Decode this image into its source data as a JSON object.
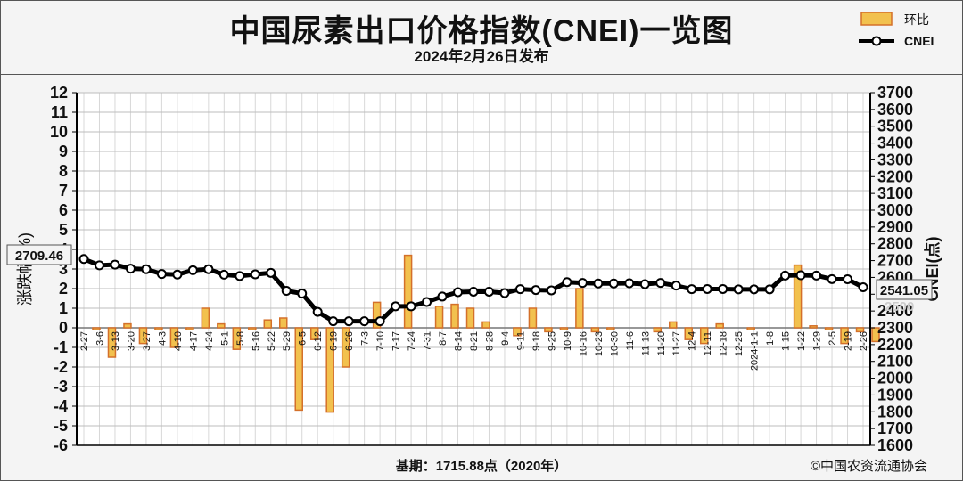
{
  "header": {
    "title": "中国尿素出口价格指数(CNEI)一览图",
    "subtitle": "2024年2月26日发布"
  },
  "legend": {
    "bar_label": "环比",
    "line_label": "CNEI"
  },
  "footer": {
    "base": "基期：1715.88点（2020年）",
    "credit": "©中国农资流通协会"
  },
  "colors": {
    "bar_fill": "#f2c14e",
    "bar_stroke": "#d4702a",
    "line": "#000000",
    "grid": "#bdbdbd",
    "plot_bg": "#ffffff"
  },
  "chart_data": {
    "type": "bar+line",
    "x": [
      "2-27",
      "3-6",
      "3-13",
      "3-20",
      "3-27",
      "4-3",
      "4-10",
      "4-17",
      "4-24",
      "5-1",
      "5-8",
      "5-16",
      "5-22",
      "5-29",
      "6-5",
      "6-12",
      "6-19",
      "6-26",
      "7-3",
      "7-10",
      "7-17",
      "7-24",
      "7-31",
      "8-7",
      "8-14",
      "8-21",
      "8-28",
      "9-4",
      "9-11",
      "9-18",
      "9-25",
      "10-9",
      "10-16",
      "10-23",
      "10-30",
      "11-6",
      "11-13",
      "11-20",
      "11-27",
      "12-4",
      "12-11",
      "12-18",
      "12-25",
      "2024-1-1",
      "1-8",
      "1-15",
      "1-22",
      "1-29",
      "2-5",
      "2-19",
      "2-26"
    ],
    "series": [
      {
        "name": "环比",
        "type": "bar",
        "axis": "left",
        "values": [
          -0.1,
          -1.5,
          0.2,
          -0.8,
          -0.1,
          -1.0,
          -0.1,
          1.0,
          0.2,
          -1.1,
          -0.1,
          0.4,
          0.5,
          -4.2,
          -0.6,
          -4.3,
          -2.0,
          0.0,
          1.3,
          0.0,
          3.7,
          0.0,
          1.1,
          1.2,
          1.0,
          0.3,
          0.0,
          -0.4,
          1.0,
          -0.2,
          -0.1,
          2.0,
          -0.2,
          -0.1,
          0.0,
          0.0,
          -0.2,
          0.3,
          -0.6,
          -0.8,
          0.2,
          0.0,
          -0.1,
          0.0,
          0.0,
          3.2,
          0.1,
          -0.1,
          -0.8,
          -0.2,
          -0.7
        ]
      },
      {
        "name": "CNEI",
        "type": "line",
        "axis": "right",
        "values": [
          2709.46,
          2672,
          2676,
          2652,
          2649,
          2620,
          2617,
          2643,
          2649,
          2616,
          2608,
          2618,
          2627,
          2520,
          2504,
          2395,
          2339,
          2339,
          2339,
          2339,
          2428,
          2428,
          2454,
          2486,
          2512,
          2515,
          2515,
          2507,
          2530,
          2525,
          2523,
          2572,
          2567,
          2564,
          2564,
          2565,
          2560,
          2567,
          2551,
          2530,
          2531,
          2531,
          2529,
          2529,
          2529,
          2611,
          2613,
          2611,
          2590,
          2589,
          2541.05
        ]
      }
    ],
    "left_axis": {
      "label": "涨跌幅(%)",
      "range": [
        -6,
        12
      ],
      "step": 1
    },
    "right_axis": {
      "label": "CNEI(点)",
      "range": [
        1600,
        3700
      ],
      "step": 100
    },
    "callouts": {
      "first": "2709.46",
      "last": "2541.05",
      "right_axis_value": "2500"
    },
    "grid": true,
    "legend_position": "top-right"
  }
}
